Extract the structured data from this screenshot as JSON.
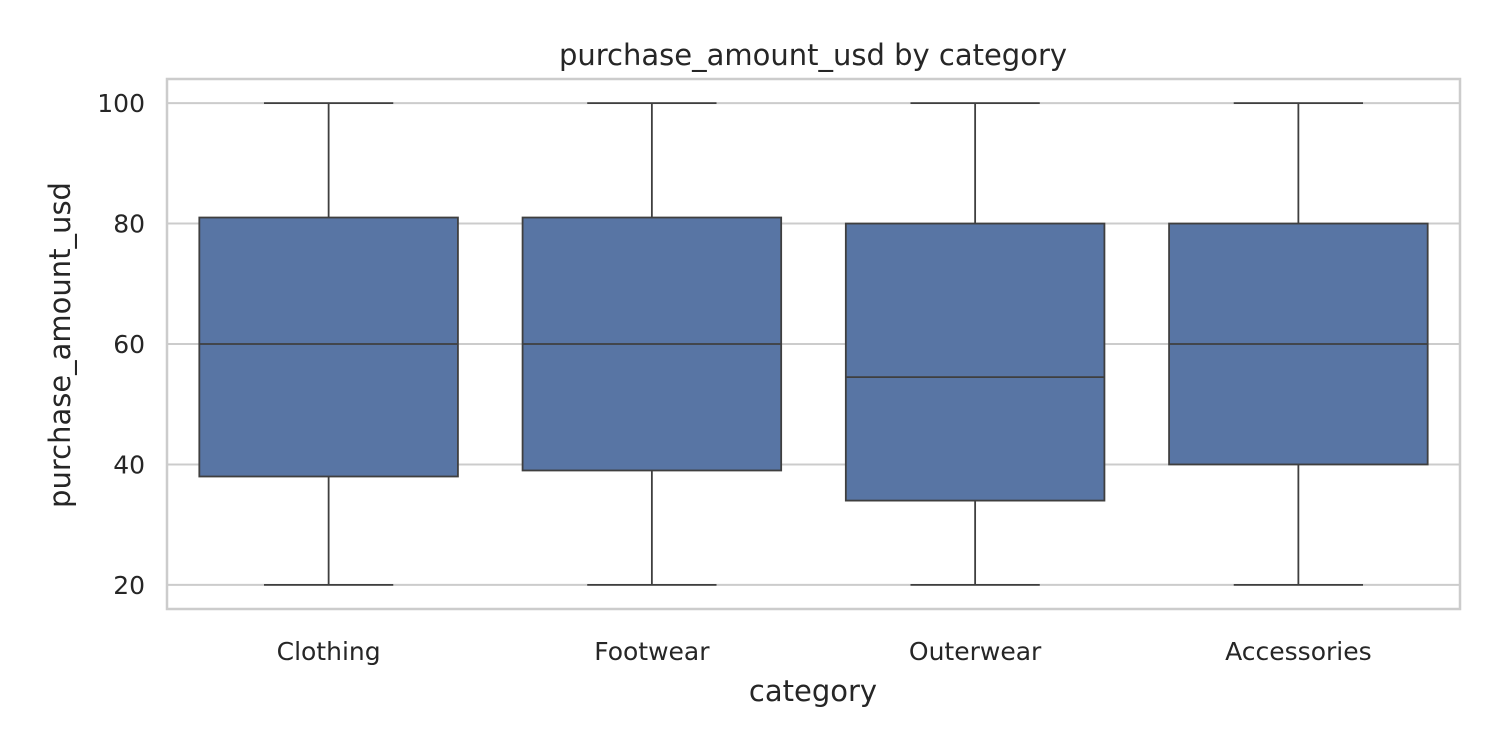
{
  "chart_data": {
    "type": "box",
    "title": "purchase_amount_usd by category",
    "xlabel": "category",
    "ylabel": "purchase_amount_usd",
    "ylim": [
      16,
      104
    ],
    "yticks": [
      20,
      40,
      60,
      80,
      100
    ],
    "grid": true,
    "color": "#5875a4",
    "categories": [
      "Clothing",
      "Footwear",
      "Outerwear",
      "Accessories"
    ],
    "boxes": [
      {
        "category": "Clothing",
        "min": 20,
        "q1": 38,
        "median": 60,
        "q3": 81,
        "max": 100
      },
      {
        "category": "Footwear",
        "min": 20,
        "q1": 39,
        "median": 60,
        "q3": 81,
        "max": 100
      },
      {
        "category": "Outerwear",
        "min": 20,
        "q1": 34,
        "median": 54.5,
        "q3": 80,
        "max": 100
      },
      {
        "category": "Accessories",
        "min": 20,
        "q1": 40,
        "median": 60,
        "q3": 80,
        "max": 100
      }
    ]
  }
}
